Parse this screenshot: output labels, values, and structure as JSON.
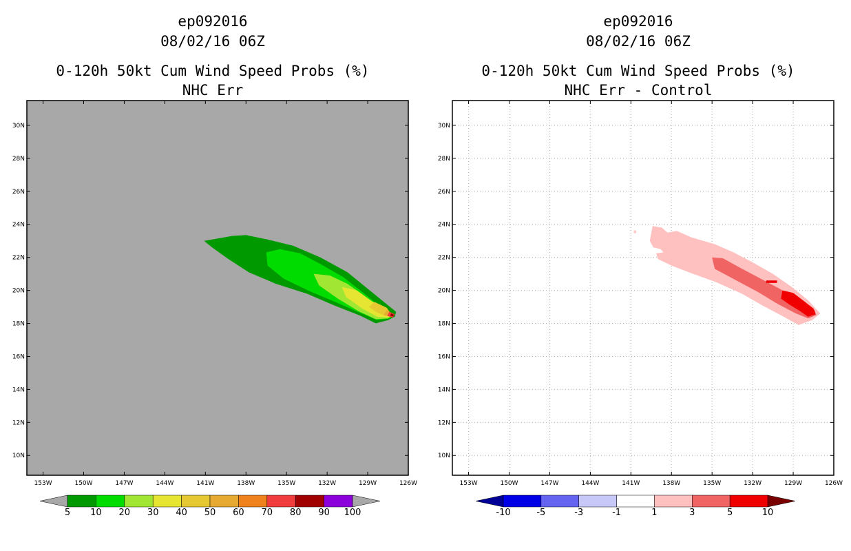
{
  "panels": [
    {
      "storm": "ep092016",
      "datetime": "08/02/16 06Z",
      "title": "0-120h 50kt Cum Wind Speed Probs (%)",
      "subtitle": "NHC Err",
      "background": "#a8a8a8"
    },
    {
      "storm": "ep092016",
      "datetime": "08/02/16 06Z",
      "title": "0-120h 50kt Cum Wind Speed Probs (%)",
      "subtitle": "NHC Err - Control",
      "background": "#ffffff"
    }
  ],
  "chart_data": [
    {
      "type": "filled-contour-map",
      "title": "0-120h 50kt Cum Wind Speed Probs (%)",
      "subtitle": "NHC Err",
      "x_ticks": [
        "153W",
        "150W",
        "147W",
        "144W",
        "141W",
        "138W",
        "135W",
        "132W",
        "129W",
        "126W"
      ],
      "y_ticks": [
        "30N",
        "28N",
        "26N",
        "24N",
        "22N",
        "20N",
        "18N",
        "16N",
        "14N",
        "12N",
        "10N"
      ],
      "xlim": [
        -154.2,
        -126
      ],
      "ylim": [
        8.8,
        31.5
      ],
      "grid": false,
      "colorbar": {
        "labels": [
          "5",
          "10",
          "20",
          "30",
          "40",
          "50",
          "60",
          "70",
          "80",
          "90",
          "100"
        ],
        "colors": [
          "#009a00",
          "#00dc00",
          "#a0e632",
          "#e6e632",
          "#e6c832",
          "#e6aa32",
          "#f0821e",
          "#f03c3c",
          "#a00000",
          "#8c00dc"
        ],
        "below_color": "#a8a8a8",
        "above_color": "#a8a8a8"
      },
      "levels": [
        {
          "min": 5,
          "color": "#009a00",
          "polygon": [
            [
              -141.1,
              23.0
            ],
            [
              -139.0,
              23.3
            ],
            [
              -138.0,
              23.35
            ],
            [
              -136.5,
              23.1
            ],
            [
              -134.5,
              22.7
            ],
            [
              -132.5,
              22.0
            ],
            [
              -130.5,
              21.1
            ],
            [
              -129.0,
              20.1
            ],
            [
              -127.8,
              19.3
            ],
            [
              -126.9,
              18.7
            ],
            [
              -127.0,
              18.4
            ],
            [
              -127.5,
              18.2
            ],
            [
              -128.4,
              18.0
            ],
            [
              -129.5,
              18.45
            ],
            [
              -131.5,
              19.1
            ],
            [
              -133.5,
              19.8
            ],
            [
              -135.8,
              20.4
            ],
            [
              -137.8,
              21.1
            ],
            [
              -139.3,
              21.9
            ],
            [
              -140.5,
              22.6
            ]
          ]
        },
        {
          "min": 10,
          "color": "#00dc00",
          "polygon": [
            [
              -136.5,
              22.3
            ],
            [
              -135.5,
              22.5
            ],
            [
              -134.0,
              22.25
            ],
            [
              -132.5,
              21.6
            ],
            [
              -130.8,
              20.8
            ],
            [
              -129.4,
              19.9
            ],
            [
              -128.2,
              19.1
            ],
            [
              -127.2,
              18.6
            ],
            [
              -127.3,
              18.3
            ],
            [
              -128.3,
              18.2
            ],
            [
              -129.6,
              18.65
            ],
            [
              -131.4,
              19.3
            ],
            [
              -133.3,
              19.95
            ],
            [
              -135.2,
              20.7
            ],
            [
              -136.4,
              21.5
            ]
          ]
        },
        {
          "min": 20,
          "color": "#a0e632",
          "polygon": [
            [
              -133.0,
              21.0
            ],
            [
              -131.8,
              20.9
            ],
            [
              -130.5,
              20.4
            ],
            [
              -129.3,
              19.7
            ],
            [
              -128.2,
              19.05
            ],
            [
              -127.3,
              18.6
            ],
            [
              -127.5,
              18.3
            ],
            [
              -128.4,
              18.25
            ],
            [
              -129.7,
              18.75
            ],
            [
              -131.2,
              19.5
            ],
            [
              -132.6,
              20.3
            ]
          ]
        },
        {
          "min": 30,
          "color": "#e6e632",
          "polygon": [
            [
              -130.9,
              20.2
            ],
            [
              -129.8,
              20.0
            ],
            [
              -128.8,
              19.4
            ],
            [
              -127.8,
              18.9
            ],
            [
              -127.2,
              18.6
            ],
            [
              -127.4,
              18.35
            ],
            [
              -128.3,
              18.4
            ],
            [
              -129.4,
              18.9
            ],
            [
              -130.6,
              19.6
            ]
          ]
        },
        {
          "min": 40,
          "color": "#e6c832",
          "polygon": [
            [
              -128.5,
              19.3
            ],
            [
              -127.6,
              18.95
            ],
            [
              -127.3,
              18.6
            ],
            [
              -127.7,
              18.45
            ],
            [
              -128.4,
              18.7
            ],
            [
              -128.9,
              19.0
            ]
          ]
        },
        {
          "min": 50,
          "color": "#e6aa32",
          "polygon": [
            [
              -127.6,
              18.8
            ],
            [
              -127.15,
              18.6
            ],
            [
              -127.3,
              18.4
            ],
            [
              -127.8,
              18.5
            ]
          ]
        },
        {
          "min": 70,
          "color": "#f03c3c",
          "polygon": [
            [
              -127.4,
              18.7
            ],
            [
              -127.0,
              18.55
            ],
            [
              -127.15,
              18.35
            ],
            [
              -127.55,
              18.45
            ]
          ]
        },
        {
          "min": 80,
          "color": "#a00000",
          "polygon": [
            [
              -127.25,
              18.6
            ],
            [
              -127.05,
              18.52
            ],
            [
              -127.15,
              18.42
            ],
            [
              -127.35,
              18.48
            ]
          ]
        }
      ]
    },
    {
      "type": "filled-contour-map",
      "title": "0-120h 50kt Cum Wind Speed Probs (%)",
      "subtitle": "NHC Err - Control",
      "x_ticks": [
        "153W",
        "150W",
        "147W",
        "144W",
        "141W",
        "138W",
        "135W",
        "132W",
        "129W",
        "126W"
      ],
      "y_ticks": [
        "30N",
        "28N",
        "26N",
        "24N",
        "22N",
        "20N",
        "18N",
        "16N",
        "14N",
        "12N",
        "10N"
      ],
      "xlim": [
        -154.2,
        -126
      ],
      "ylim": [
        8.8,
        31.5
      ],
      "grid": true,
      "colorbar": {
        "labels": [
          "-10",
          "-5",
          "-3",
          "-1",
          "1",
          "3",
          "5",
          "10"
        ],
        "colors": [
          "#0000e6",
          "#6464f0",
          "#c8c8f8",
          "#ffffff",
          "#ffc0c0",
          "#f06464",
          "#f00000"
        ],
        "below_color": "#000096",
        "above_color": "#780000"
      },
      "levels": [
        {
          "min": 1,
          "color": "#ffc0c0",
          "polygon": [
            [
              -139.4,
              23.9
            ],
            [
              -138.7,
              23.8
            ],
            [
              -138.3,
              23.5
            ],
            [
              -137.6,
              23.6
            ],
            [
              -136.5,
              23.2
            ],
            [
              -134.8,
              22.8
            ],
            [
              -133.4,
              22.3
            ],
            [
              -132.0,
              21.7
            ],
            [
              -130.5,
              21.0
            ],
            [
              -129.1,
              20.2
            ],
            [
              -127.9,
              19.4
            ],
            [
              -127.0,
              18.6
            ],
            [
              -127.6,
              18.2
            ],
            [
              -128.6,
              17.9
            ],
            [
              -129.7,
              18.4
            ],
            [
              -131.3,
              19.1
            ],
            [
              -132.8,
              19.8
            ],
            [
              -134.7,
              20.5
            ],
            [
              -136.4,
              21.0
            ],
            [
              -138.0,
              21.5
            ],
            [
              -139.0,
              21.9
            ],
            [
              -139.2,
              22.4
            ],
            [
              -139.6,
              23.0
            ]
          ]
        },
        {
          "min": 3,
          "color": "#f06464",
          "polygon": [
            [
              -135.0,
              22.0
            ],
            [
              -134.2,
              21.95
            ],
            [
              -133.0,
              21.4
            ],
            [
              -131.5,
              20.75
            ],
            [
              -130.0,
              20.1
            ],
            [
              -128.6,
              19.4
            ],
            [
              -127.4,
              18.8
            ],
            [
              -127.3,
              18.5
            ],
            [
              -127.9,
              18.3
            ],
            [
              -128.8,
              18.6
            ],
            [
              -130.2,
              19.2
            ],
            [
              -131.6,
              19.9
            ],
            [
              -133.2,
              20.6
            ],
            [
              -134.8,
              21.3
            ]
          ]
        },
        {
          "min": 5,
          "color": "#f00000",
          "polygon": [
            [
              -129.8,
              20.0
            ],
            [
              -129.0,
              19.85
            ],
            [
              -128.2,
              19.35
            ],
            [
              -127.5,
              18.9
            ],
            [
              -127.35,
              18.55
            ],
            [
              -127.9,
              18.4
            ],
            [
              -128.5,
              18.75
            ],
            [
              -129.3,
              19.15
            ],
            [
              -129.9,
              19.5
            ]
          ]
        },
        {
          "min": 5,
          "color": "#f00000",
          "polygon": [
            [
              -131.0,
              20.6
            ],
            [
              -130.2,
              20.6
            ],
            [
              -130.2,
              20.45
            ],
            [
              -131.0,
              20.45
            ]
          ]
        }
      ],
      "cutouts": [
        {
          "color": "#ffffff",
          "polygon": [
            [
              -139.3,
              22.6
            ],
            [
              -138.8,
              22.5
            ],
            [
              -138.6,
              22.3
            ],
            [
              -139.1,
              22.25
            ],
            [
              -139.4,
              22.4
            ]
          ]
        }
      ],
      "dots": [
        {
          "color": "#ffc0c0",
          "lon": -140.7,
          "lat": 23.55
        }
      ]
    }
  ]
}
